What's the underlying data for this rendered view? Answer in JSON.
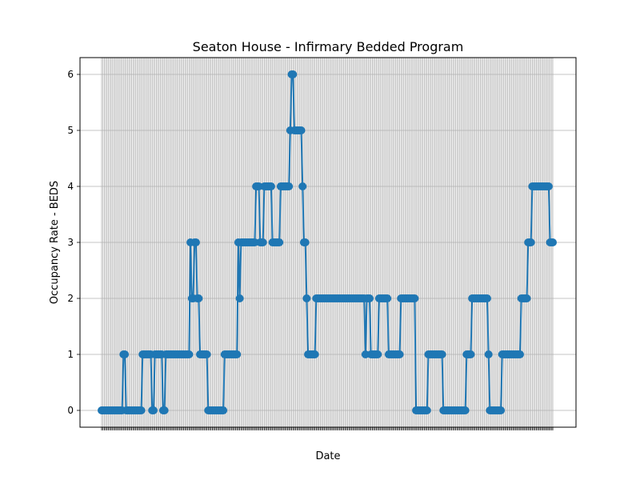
{
  "chart_data": {
    "type": "line",
    "title": "Seaton House - Infirmary Bedded Program",
    "xlabel": "Date",
    "ylabel": "Occupancy Rate - BEDS",
    "ylim": [
      -0.3,
      6.3
    ],
    "yticks": [
      0,
      1,
      2,
      3,
      4,
      5,
      6
    ],
    "grid": true,
    "line_color": "#1f77b4",
    "marker": "circle",
    "series": [
      {
        "values": [
          0,
          0,
          0,
          0,
          0,
          0,
          0,
          0,
          0,
          0,
          0,
          0,
          0,
          0,
          0,
          0,
          1,
          1,
          0,
          0,
          0,
          0,
          0,
          0,
          0,
          0,
          0,
          0,
          0,
          0,
          1,
          1,
          1,
          1,
          1,
          1,
          1,
          0,
          0,
          1,
          1,
          1,
          1,
          1,
          1,
          0,
          0,
          1,
          1,
          1,
          1,
          1,
          1,
          1,
          1,
          1,
          1,
          1,
          1,
          1,
          1,
          1,
          1,
          1,
          1,
          3,
          2,
          2,
          3,
          3,
          2,
          2,
          1,
          1,
          1,
          1,
          1,
          1,
          0,
          0,
          0,
          0,
          0,
          0,
          0,
          0,
          0,
          0,
          0,
          0,
          1,
          1,
          1,
          1,
          1,
          1,
          1,
          1,
          1,
          1,
          3,
          2,
          3,
          3,
          3,
          3,
          3,
          3,
          3,
          3,
          3,
          3,
          3,
          4,
          4,
          4,
          3,
          3,
          3,
          4,
          4,
          4,
          4,
          4,
          4,
          3,
          3,
          3,
          3,
          3,
          3,
          4,
          4,
          4,
          4,
          4,
          4,
          4,
          5,
          6,
          6,
          5,
          5,
          5,
          5,
          5,
          5,
          4,
          3,
          3,
          2,
          1,
          1,
          1,
          1,
          1,
          1,
          2,
          2,
          2,
          2,
          2,
          2,
          2,
          2,
          2,
          2,
          2,
          2,
          2,
          2,
          2,
          2,
          2,
          2,
          2,
          2,
          2,
          2,
          2,
          2,
          2,
          2,
          2,
          2,
          2,
          2,
          2,
          2,
          2,
          2,
          2,
          2,
          1,
          2,
          2,
          2,
          1,
          1,
          1,
          1,
          1,
          1,
          2,
          2,
          2,
          2,
          2,
          2,
          2,
          1,
          1,
          1,
          1,
          1,
          1,
          1,
          1,
          1,
          2,
          2,
          2,
          2,
          2,
          2,
          2,
          2,
          2,
          2,
          2,
          0,
          0,
          0,
          0,
          0,
          0,
          0,
          0,
          0,
          1,
          1,
          1,
          1,
          1,
          1,
          1,
          1,
          1,
          1,
          1,
          0,
          0,
          0,
          0,
          0,
          0,
          0,
          0,
          0,
          0,
          0,
          0,
          0,
          0,
          0,
          0,
          0,
          1,
          1,
          1,
          1,
          2,
          2,
          2,
          2,
          2,
          2,
          2,
          2,
          2,
          2,
          2,
          2,
          1,
          0,
          0,
          0,
          0,
          0,
          0,
          0,
          0,
          0,
          1,
          1,
          1,
          1,
          1,
          1,
          1,
          1,
          1,
          1,
          1,
          1,
          1,
          1,
          2,
          2,
          2,
          2,
          2,
          3,
          3,
          3,
          4,
          4,
          4,
          4,
          4,
          4,
          4,
          4,
          4,
          4,
          4,
          4,
          4,
          3,
          3,
          3
        ]
      }
    ]
  }
}
